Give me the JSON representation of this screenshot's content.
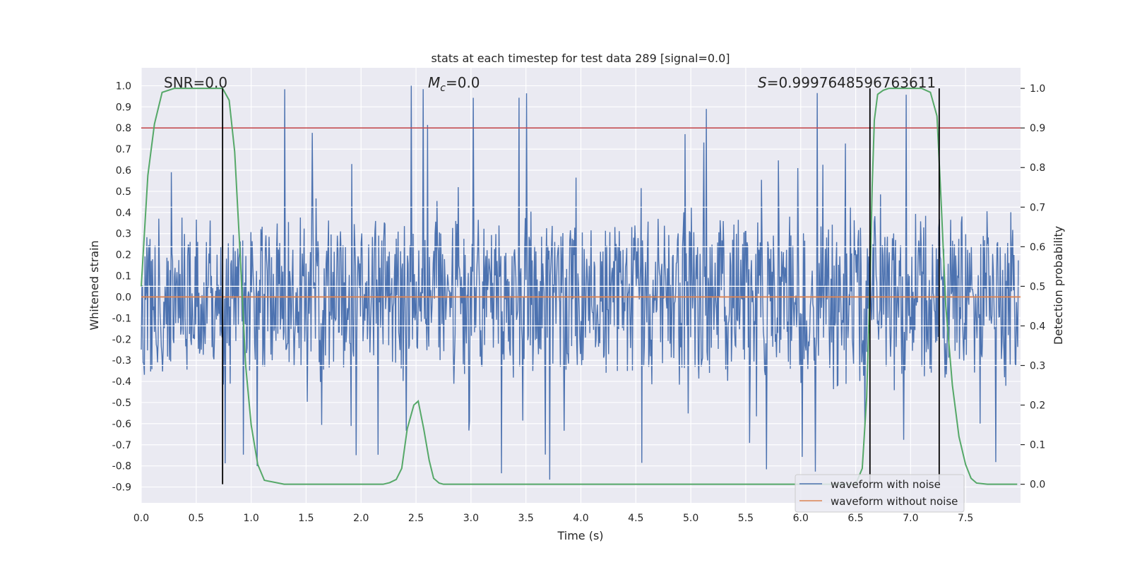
{
  "chart_data": {
    "type": "line",
    "title": "stats at each timestep for test data 289 [signal=0.0]",
    "xlabel": "Time (s)",
    "ylabel": "Whitened strain",
    "y2label": "Detection probability",
    "xlim": [
      0.0,
      8.0
    ],
    "ylim": [
      -0.975,
      1.085
    ],
    "y2lim": [
      -0.047,
      1.052
    ],
    "xticks": [
      0.0,
      0.5,
      1.0,
      1.5,
      2.0,
      2.5,
      3.0,
      3.5,
      4.0,
      4.5,
      5.0,
      5.5,
      6.0,
      6.5,
      7.0,
      7.5
    ],
    "xtick_labels": [
      "0.0",
      "0.5",
      "1.0",
      "1.5",
      "2.0",
      "2.5",
      "3.0",
      "3.5",
      "4.0",
      "4.5",
      "5.0",
      "5.5",
      "6.0",
      "6.5",
      "7.0",
      "7.5"
    ],
    "yticks": [
      1.0,
      0.9,
      0.8,
      0.7,
      0.6,
      0.5,
      0.4,
      0.3,
      0.2,
      0.1,
      0.0,
      -0.1,
      -0.2,
      -0.3,
      -0.4,
      -0.5,
      -0.6,
      -0.7,
      -0.8,
      -0.9
    ],
    "ytick_labels": [
      "1.0",
      "0.9",
      "0.8",
      "0.7",
      "0.6",
      "0.5",
      "0.4",
      "0.3",
      "0.2",
      "0.1",
      "0.0",
      "-0.1",
      "-0.2",
      "-0.3",
      "-0.4",
      "-0.5",
      "-0.6",
      "-0.7",
      "-0.8",
      "-0.9"
    ],
    "y2ticks": [
      1.0,
      0.9,
      0.8,
      0.7,
      0.6,
      0.5,
      0.4,
      0.3,
      0.2,
      0.1,
      0.0
    ],
    "y2tick_labels": [
      "1.0",
      "0.9",
      "0.8",
      "0.7",
      "0.6",
      "0.5",
      "0.4",
      "0.3",
      "0.2",
      "0.1",
      "0.0"
    ],
    "annotations": {
      "snr": "SNR=0.0",
      "mc_symbol": "M",
      "mc_sub": "c",
      "mc_value": "=0.0",
      "s_symbol": "S",
      "s_value": "=0.9997648596763611"
    },
    "threshold_probability": 0.9,
    "noise_envelope": {
      "typical_min": -0.45,
      "typical_max": 0.45,
      "spike_min": -0.87,
      "spike_max": 1.0
    },
    "vlines_x": [
      0.74,
      6.63,
      7.26
    ],
    "series": [
      {
        "name": "waveform with noise",
        "color": "#4c72b0",
        "axis": "left"
      },
      {
        "name": "waveform without noise",
        "color": "#dd8452",
        "axis": "left",
        "x": [
          0.0,
          8.0
        ],
        "y": [
          0.0,
          0.0
        ]
      },
      {
        "name": "detection probability",
        "color": "#55a868",
        "axis": "right",
        "x": [
          0.0,
          0.06,
          0.12,
          0.19,
          0.3,
          0.5,
          0.66,
          0.74,
          0.8,
          0.85,
          0.9,
          0.95,
          1.0,
          1.06,
          1.12,
          1.3,
          1.6,
          1.9,
          2.0,
          2.1,
          2.2,
          2.26,
          2.32,
          2.37,
          2.42,
          2.48,
          2.52,
          2.57,
          2.62,
          2.66,
          2.71,
          2.75,
          2.8,
          3.0,
          4.0,
          5.0,
          6.0,
          6.5,
          6.56,
          6.6,
          6.63,
          6.65,
          6.67,
          6.7,
          6.75,
          6.8,
          7.0,
          7.1,
          7.18,
          7.24,
          7.28,
          7.32,
          7.38,
          7.44,
          7.5,
          7.55,
          7.6,
          7.7,
          7.97
        ],
        "y": [
          0.5,
          0.78,
          0.91,
          0.99,
          1.0,
          1.0,
          1.0,
          1.0,
          0.97,
          0.84,
          0.58,
          0.3,
          0.15,
          0.05,
          0.01,
          0.0,
          0.0,
          0.0,
          0.0,
          0.0,
          0.0,
          0.004,
          0.012,
          0.04,
          0.14,
          0.2,
          0.21,
          0.14,
          0.06,
          0.015,
          0.003,
          0.0,
          0.0,
          0.0,
          0.0,
          0.0,
          0.0,
          0.0,
          0.04,
          0.22,
          0.5,
          0.75,
          0.92,
          0.985,
          0.995,
          1.0,
          1.0,
          1.0,
          0.99,
          0.93,
          0.7,
          0.45,
          0.25,
          0.12,
          0.05,
          0.015,
          0.003,
          0.0,
          0.0
        ]
      }
    ],
    "legend": {
      "placement": "lower-right",
      "entries": [
        "waveform with noise",
        "waveform without noise"
      ]
    },
    "grid": true
  },
  "colors": {
    "axes_bg": "#eaeaf2",
    "grid": "#ffffff",
    "noise": "#4c72b0",
    "clean": "#dd8452",
    "prob": "#55a868",
    "threshold": "#c44e52",
    "vline": "#000000"
  }
}
